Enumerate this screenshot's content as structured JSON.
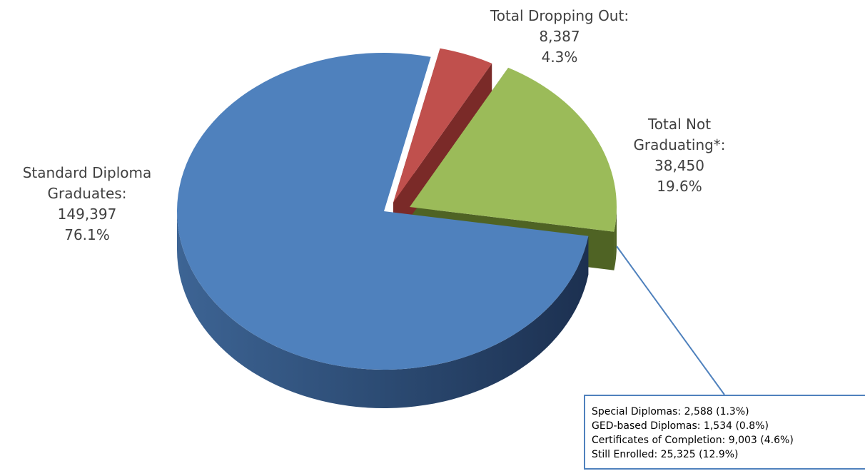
{
  "chart_data": {
    "type": "pie",
    "style": "3d-exploded",
    "slices": [
      {
        "name": "Standard Diploma Graduates:",
        "value": 149397,
        "value_label": "149,397",
        "percent_label": "76.1%",
        "color": "#4f81bd",
        "side_color": "#2a4a75"
      },
      {
        "name": "Total Dropping Out:",
        "value": 8387,
        "value_label": "8,387",
        "percent_label": "4.3%",
        "color": "#c0504d",
        "side_color": "#7a2a28"
      },
      {
        "name": "Total Not Graduating*:",
        "value": 38450,
        "value_label": "38,450",
        "percent_label": "19.6%",
        "color": "#9bbb59",
        "side_color": "#4f6324"
      }
    ],
    "labels": {
      "standard": {
        "line1": "Standard Diploma",
        "line2": "Graduates:",
        "value": "149,397",
        "percent": "76.1%"
      },
      "dropping": {
        "line1": "Total Dropping Out:",
        "value": "8,387",
        "percent": "4.3%"
      },
      "not_graduating": {
        "line1": "Total Not",
        "line2": "Graduating*:",
        "value": "38,450",
        "percent": "19.6%"
      }
    },
    "callout": {
      "items": [
        "Special Diplomas: 2,588 (1.3%)",
        "GED-based Diplomas: 1,534 (0.8%)",
        "Certificates of Completion: 9,003 (4.6%)",
        "Still Enrolled: 25,325 (12.9%)"
      ],
      "border_color": "#4f81bd"
    }
  }
}
